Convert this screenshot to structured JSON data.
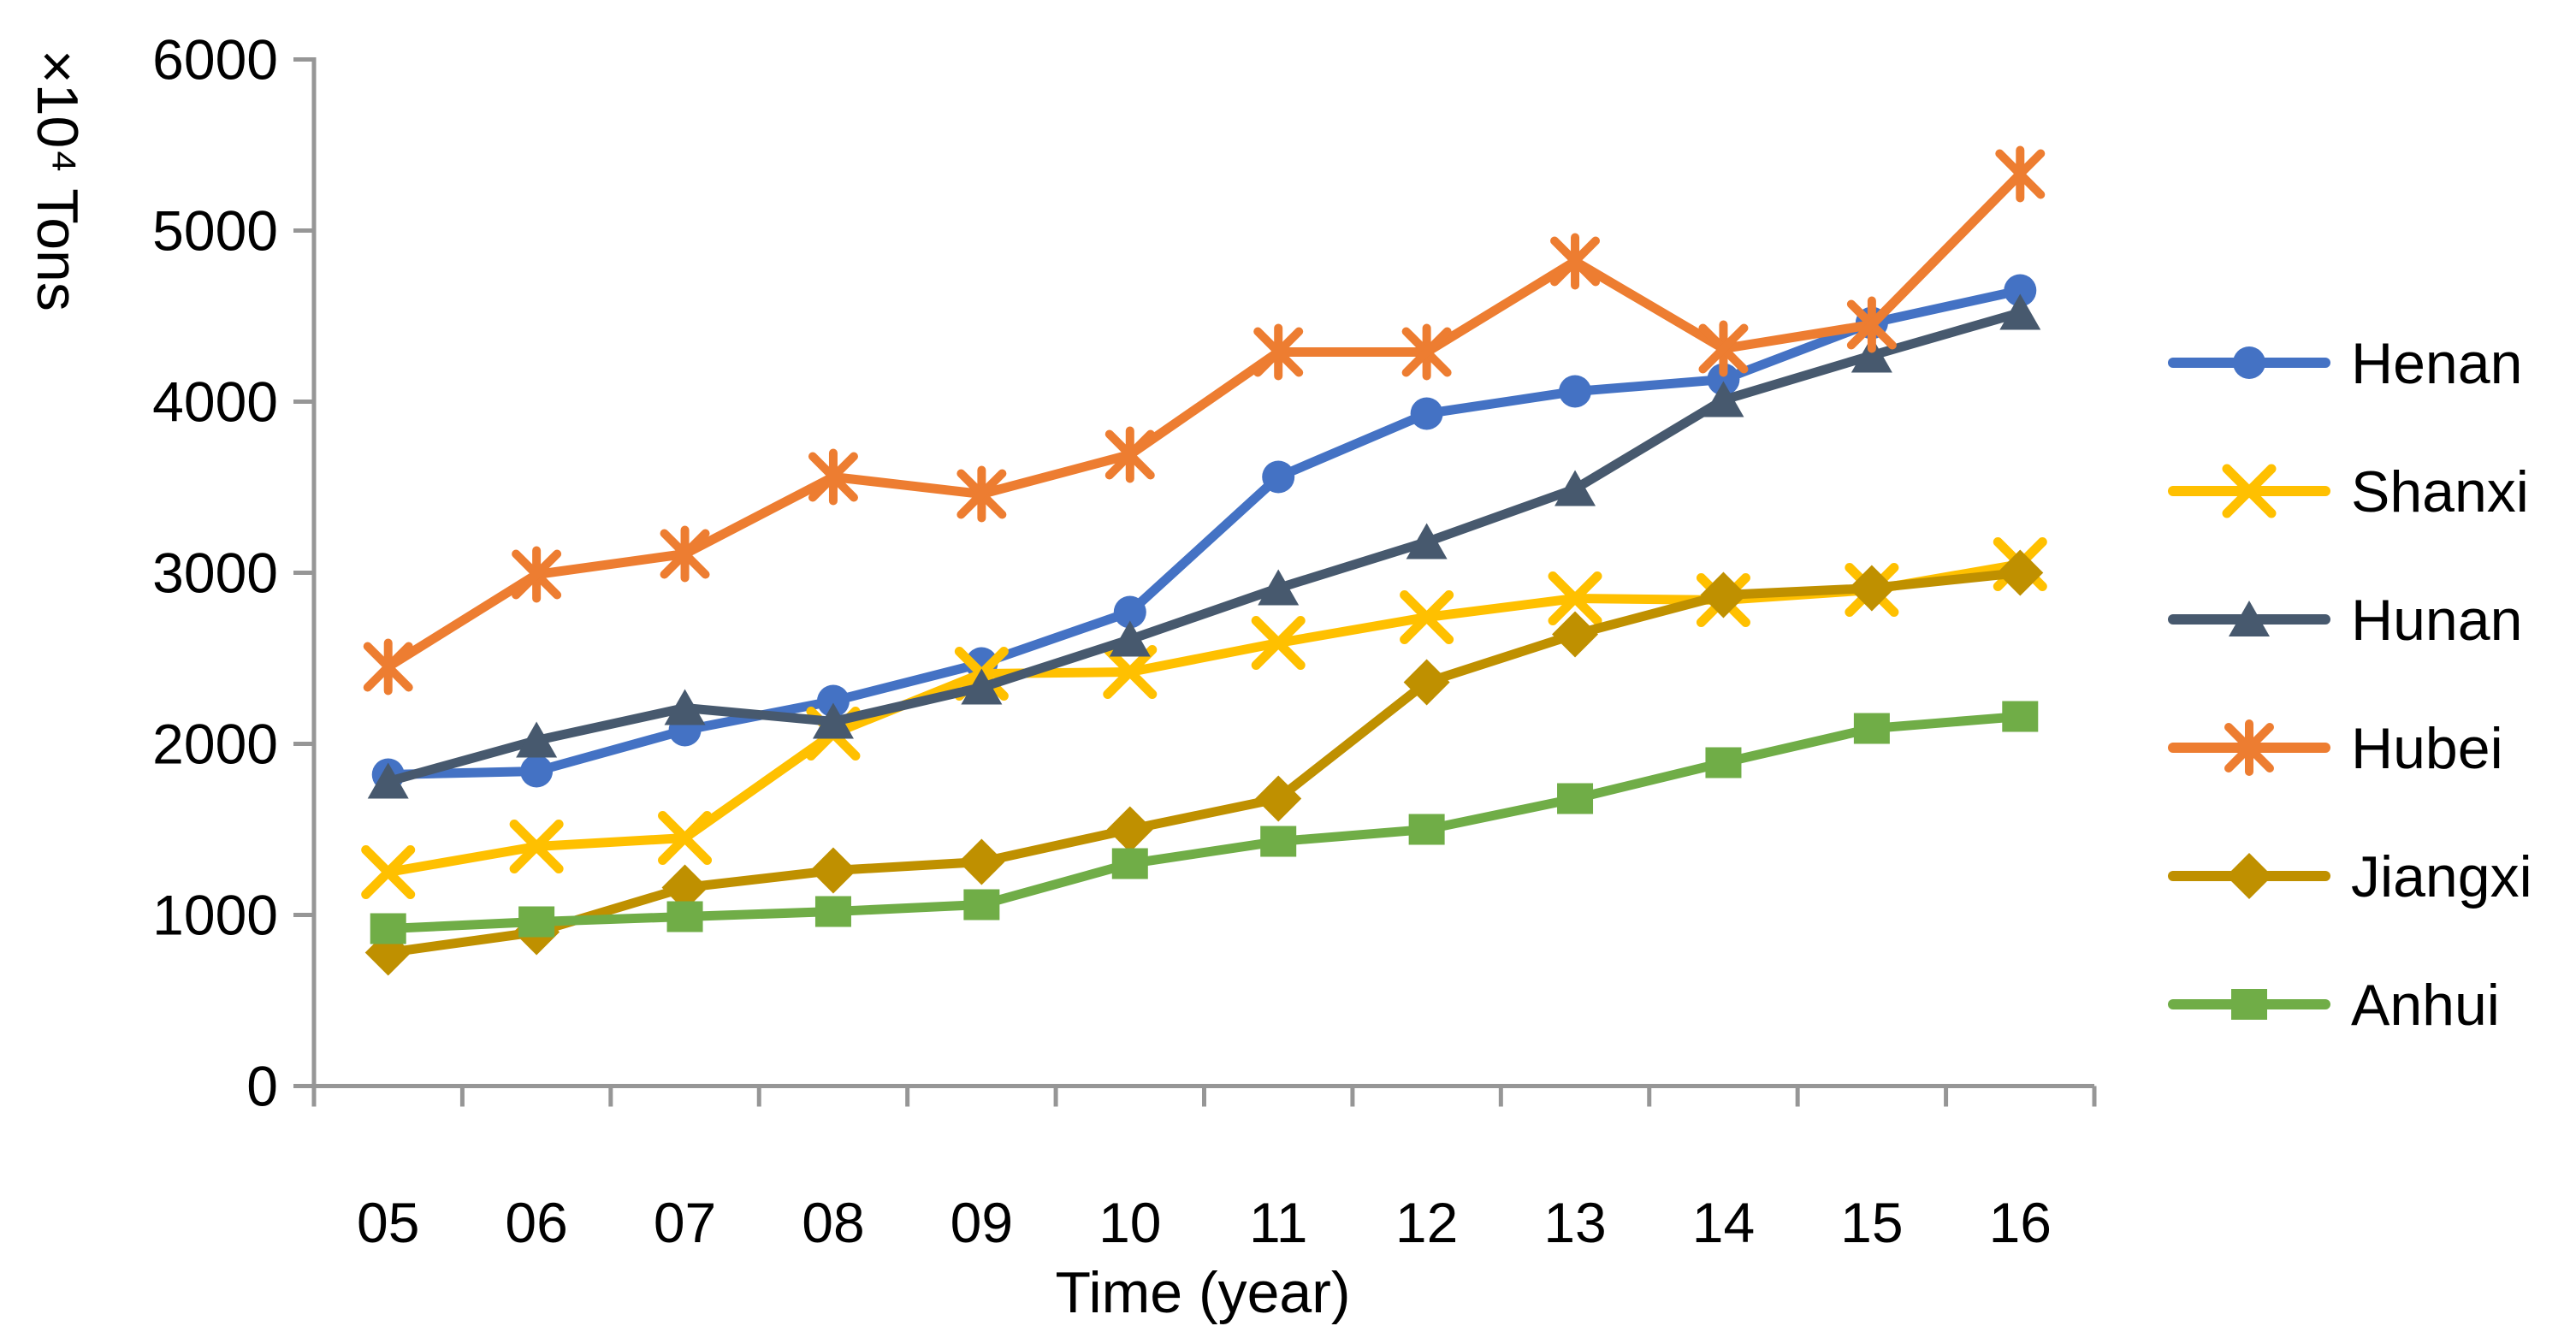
{
  "figure": {
    "background": "#ffffff",
    "axis_color": "#969696",
    "text_color": "#000000"
  },
  "chart_data": {
    "type": "line",
    "title": "",
    "xlabel": "Time (year)",
    "ylabel": "×10⁴ Tons",
    "categories": [
      "05",
      "06",
      "07",
      "08",
      "09",
      "10",
      "11",
      "12",
      "13",
      "14",
      "15",
      "16"
    ],
    "ylim": [
      0,
      6000
    ],
    "y_ticks": [
      0,
      1000,
      2000,
      3000,
      4000,
      5000,
      6000
    ],
    "grid": false,
    "legend_position": "right",
    "series": [
      {
        "name": "Henan",
        "color": "#4472C4",
        "marker": "circle",
        "values": [
          1820,
          1840,
          2080,
          2250,
          2470,
          2770,
          3560,
          3930,
          4060,
          4130,
          4460,
          4650
        ]
      },
      {
        "name": "Shanxi",
        "color": "#FFC000",
        "marker": "x",
        "values": [
          1250,
          1400,
          1450,
          2060,
          2410,
          2420,
          2590,
          2740,
          2850,
          2840,
          2900,
          3050
        ]
      },
      {
        "name": "Hunan",
        "color": "#47596E",
        "marker": "triangle",
        "values": [
          1780,
          2020,
          2210,
          2130,
          2330,
          2610,
          2910,
          3180,
          3490,
          4010,
          4270,
          4520
        ]
      },
      {
        "name": "Hubei",
        "color": "#ED7D31",
        "marker": "asterisk",
        "values": [
          2450,
          2990,
          3110,
          3560,
          3460,
          3690,
          4290,
          4290,
          4820,
          4310,
          4450,
          5330
        ]
      },
      {
        "name": "Jiangxi",
        "color": "#BF9000",
        "marker": "diamond",
        "values": [
          780,
          900,
          1160,
          1260,
          1310,
          1500,
          1680,
          2360,
          2640,
          2870,
          2910,
          3000
        ]
      },
      {
        "name": "Anhui",
        "color": "#70AD47",
        "marker": "square",
        "values": [
          920,
          960,
          990,
          1020,
          1060,
          1300,
          1430,
          1500,
          1680,
          1890,
          2090,
          2160
        ]
      }
    ]
  }
}
